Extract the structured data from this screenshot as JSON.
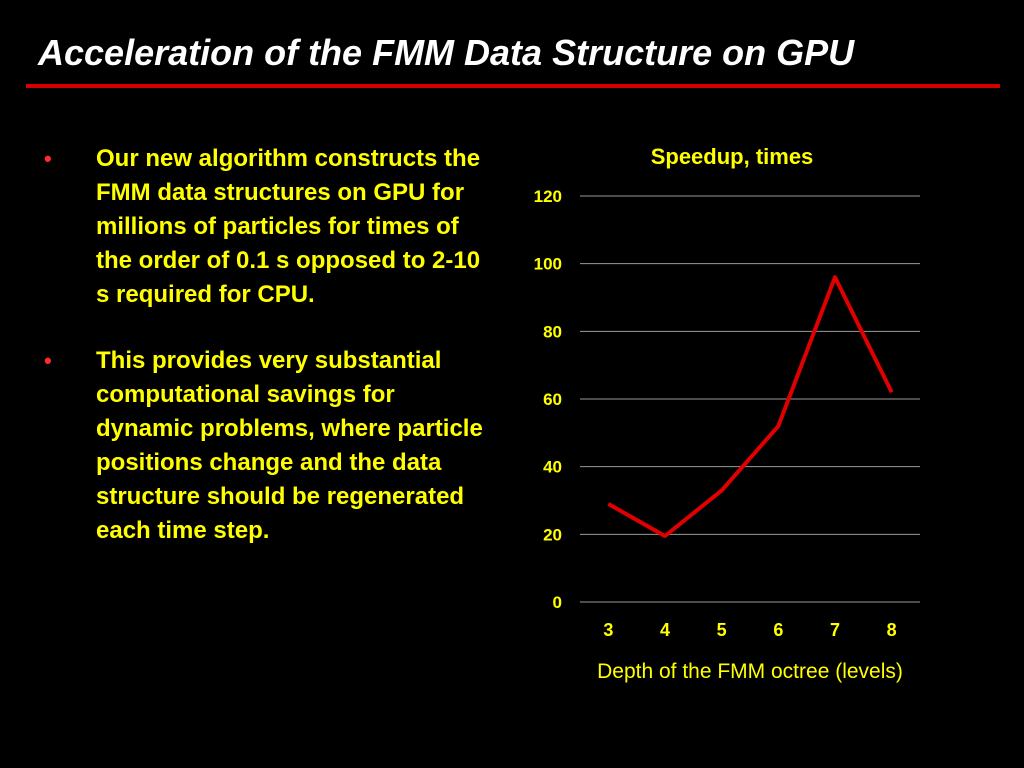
{
  "slide": {
    "title": "Acceleration of the FMM Data Structure on GPU",
    "accent_color": "#d40000",
    "text_color": "#ffff00",
    "bullets": [
      {
        "marker": "•",
        "text": "Our new algorithm constructs the FMM data structures on GPU for millions of particles for times of the order of 0.1 s opposed to 2-10 s required for CPU."
      },
      {
        "marker": "•",
        "text": "This provides very substantial computational savings for dynamic problems, where particle positions change and the data structure should be regenerated each time step."
      }
    ]
  },
  "chart_data": {
    "type": "line",
    "title": "Speedup, times",
    "xlabel": "Depth of the FMM octree (levels)",
    "ylabel": "",
    "categories": [
      "3",
      "4",
      "5",
      "6",
      "7",
      "8"
    ],
    "series": [
      {
        "values": [
          29,
          19.5,
          33,
          52,
          96,
          62
        ],
        "color": "#e00000"
      }
    ],
    "ylim": [
      0,
      120
    ],
    "yticks": [
      0,
      20,
      40,
      60,
      80,
      100,
      120
    ],
    "ytick_labels": [
      "0",
      "20",
      "40",
      "60",
      "80",
      "100",
      "120"
    ],
    "grid": true,
    "legend": "none"
  }
}
